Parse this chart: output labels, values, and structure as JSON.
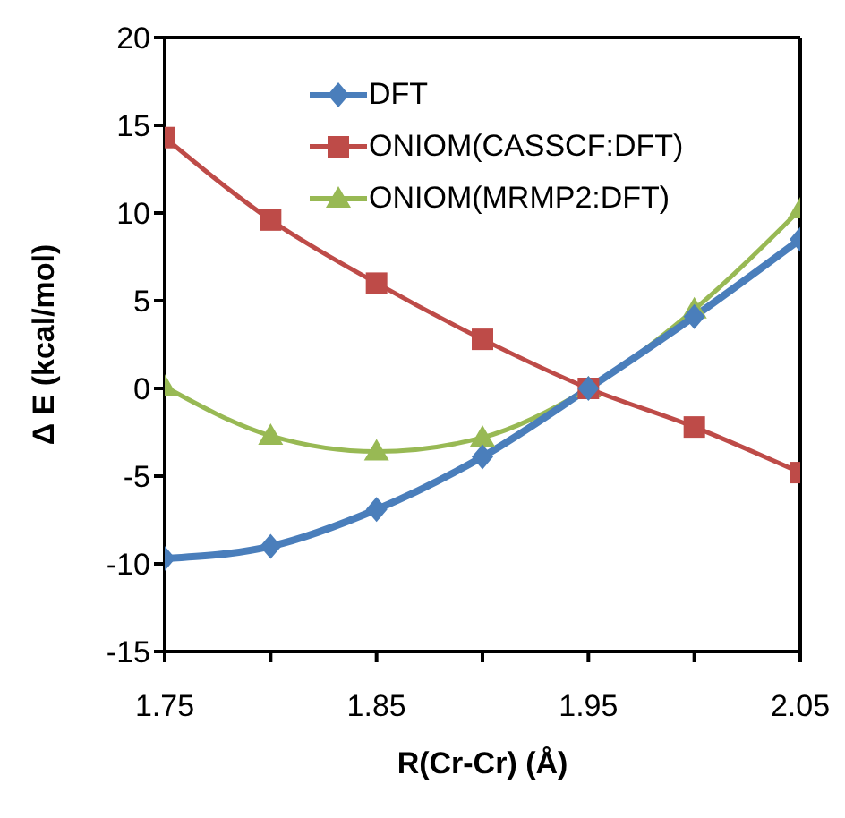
{
  "chart_data": {
    "type": "line",
    "xlabel": "R(Cr-Cr) (Å)",
    "ylabel": "Δ E (kcal/mol)",
    "x": [
      1.75,
      1.8,
      1.85,
      1.9,
      1.95,
      2.0,
      2.05
    ],
    "series": [
      {
        "name": "DFT",
        "color": "#4a7ebb",
        "marker": "diamond",
        "values": [
          -9.7,
          -9.0,
          -6.9,
          -3.9,
          0,
          4.1,
          8.5
        ]
      },
      {
        "name": "ONIOM(CASSCF:DFT)",
        "color": "#be4b48",
        "marker": "square",
        "values": [
          14.3,
          9.6,
          6.0,
          2.8,
          0,
          -2.2,
          -4.8
        ]
      },
      {
        "name": "ONIOM(MRMP2:DFT)",
        "color": "#98b954",
        "marker": "triangle",
        "values": [
          0.1,
          -2.7,
          -3.6,
          -2.8,
          0,
          4.5,
          10.2
        ]
      }
    ],
    "xlim": [
      1.75,
      2.05
    ],
    "xticks": [
      1.75,
      {
        "value": 1.8,
        "label": null
      },
      1.85,
      {
        "value": 1.9,
        "label": null
      },
      1.95,
      {
        "value": 2.0,
        "label": null
      },
      2.05
    ],
    "ylim": [
      -15,
      20
    ],
    "yticks": [
      -15,
      -10,
      -5,
      0,
      5,
      10,
      15,
      20
    ],
    "grid": false,
    "legend": "top right"
  }
}
